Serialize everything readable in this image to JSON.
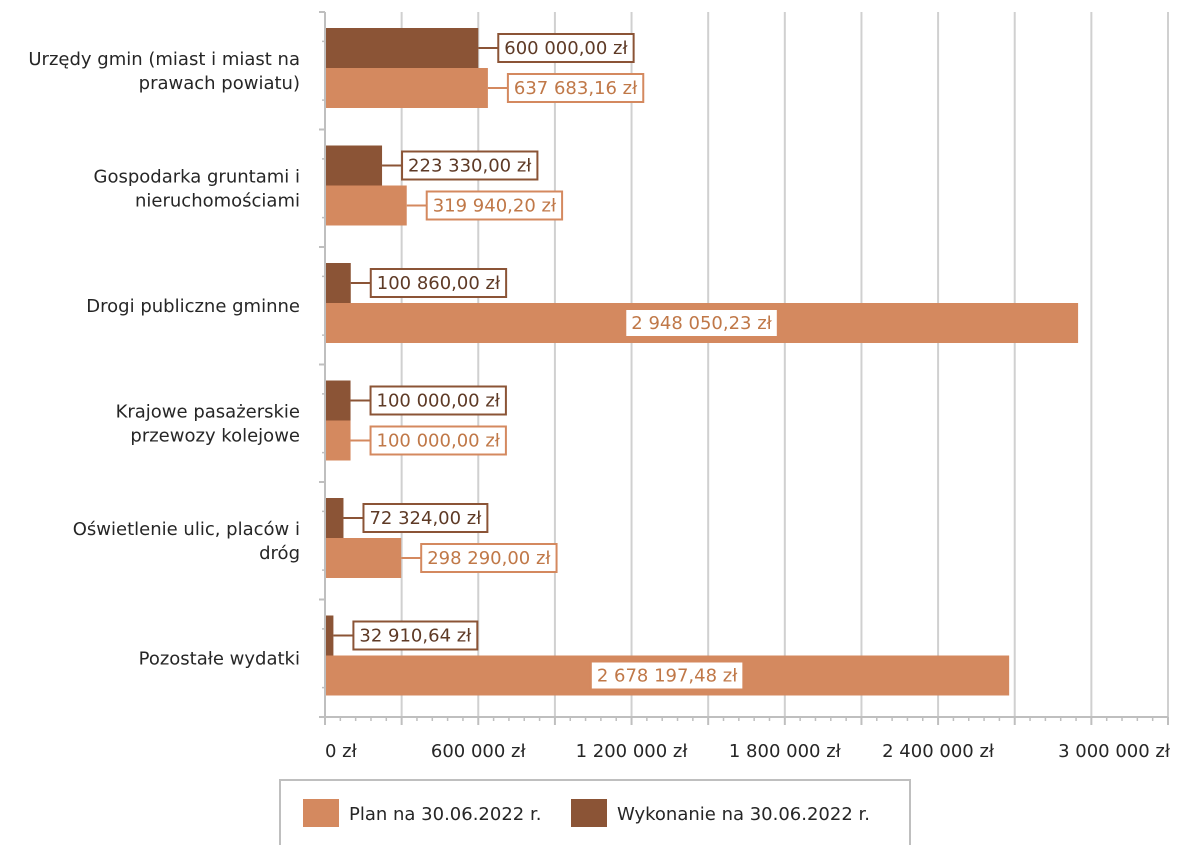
{
  "chart_data": {
    "type": "bar",
    "orientation": "horizontal",
    "title": "",
    "xlabel": "",
    "ylabel": "",
    "xlim": [
      0,
      3300000
    ],
    "x_ticks": [
      0,
      600000,
      1200000,
      1800000,
      2400000,
      3000000
    ],
    "x_tick_labels": [
      "0 zł",
      "600 000 zł",
      "1 200 000 zł",
      "1 800 000 zł",
      "2 400 000 zł",
      "3 000 000 zł"
    ],
    "grid": true,
    "legend_position": "bottom",
    "categories": [
      [
        "Urzędy gmin (miast i miast na",
        "prawach powiatu)"
      ],
      [
        "Gospodarka gruntami i",
        "nieruchomościami"
      ],
      [
        "Drogi publiczne gminne"
      ],
      [
        "Krajowe pasażerskie",
        "przewozy kolejowe"
      ],
      [
        "Oświetlenie ulic, placów i",
        "dróg"
      ],
      [
        "Pozostałe wydatki"
      ]
    ],
    "series": [
      {
        "name": "Wykonanie na 30.06.2022 r.",
        "color": "#8b5436",
        "values": [
          600000.0,
          223330.0,
          100860.0,
          100000.0,
          72324.0,
          32910.64
        ],
        "labels": [
          "600 000,00 zł",
          "223 330,00 zł",
          "100 860,00 zł",
          "100 000,00 zł",
          "72 324,00 zł",
          "32 910,64 zł"
        ]
      },
      {
        "name": "Plan na 30.06.2022 r.",
        "color": "#d4895f",
        "values": [
          637683.16,
          319940.2,
          2948050.23,
          100000.0,
          298290.0,
          2678197.48
        ],
        "labels": [
          "637 683,16 zł",
          "319 940,20 zł",
          "2 948 050,23 zł",
          "100 000,00 zł",
          "298 290,00 zł",
          "2 678 197,48 zł"
        ]
      }
    ],
    "legend": [
      {
        "label": "Plan na 30.06.2022 r.",
        "color": "#d4895f"
      },
      {
        "label": "Wykonanie na 30.06.2022 r.",
        "color": "#8b5436"
      }
    ]
  }
}
